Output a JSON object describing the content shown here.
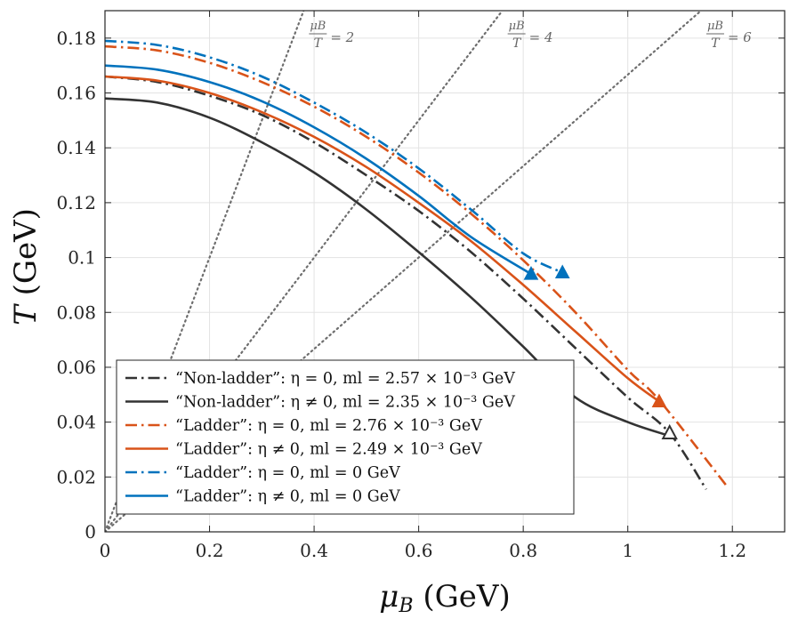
{
  "chart_data": {
    "type": "line",
    "title": "",
    "xlabel": "μB (GeV)",
    "ylabel": "T (GeV)",
    "xlim": [
      0,
      1.3
    ],
    "ylim": [
      0,
      0.19
    ],
    "xticks": [
      0,
      0.2,
      0.4,
      0.6,
      0.8,
      1.0,
      1.2
    ],
    "xtick_labels": [
      "0",
      "0.2",
      "0.4",
      "0.6",
      "0.8",
      "1",
      "1.2"
    ],
    "yticks": [
      0,
      0.02,
      0.04,
      0.06,
      0.08,
      0.1,
      0.12,
      0.14,
      0.16,
      0.18
    ],
    "ytick_labels": [
      "0",
      "0.02",
      "0.04",
      "0.06",
      "0.08",
      "0.1",
      "0.12",
      "0.14",
      "0.16",
      "0.18"
    ],
    "grid": true,
    "legend_position": "bottom-left",
    "reference_lines": [
      {
        "ratio": 2,
        "label_num": "μB",
        "label_den": "T",
        "label_rhs": "= 2"
      },
      {
        "ratio": 4,
        "label_num": "μB",
        "label_den": "T",
        "label_rhs": "= 4"
      },
      {
        "ratio": 6,
        "label_num": "μB",
        "label_den": "T",
        "label_rhs": "= 6"
      }
    ],
    "series": [
      {
        "name": "Non-ladder η=0",
        "legend_text": "“Non-ladder”: η = 0,  ml = 2.57 × 10⁻³ GeV",
        "color": "#333333",
        "dash": "dashdot",
        "x": [
          0,
          0.1,
          0.2,
          0.3,
          0.4,
          0.5,
          0.6,
          0.7,
          0.8,
          0.9,
          1.0,
          1.08,
          1.15
        ],
        "y": [
          0.166,
          0.164,
          0.159,
          0.152,
          0.142,
          0.13,
          0.117,
          0.102,
          0.085,
          0.067,
          0.049,
          0.036,
          0.0155
        ],
        "marker": {
          "x": 1.08,
          "y": 0.036,
          "shape": "open-triangle"
        }
      },
      {
        "name": "Non-ladder η≠0",
        "legend_text": "“Non-ladder”: η ≠ 0,  ml = 2.35 × 10⁻³ GeV",
        "color": "#333333",
        "dash": "solid",
        "x": [
          0,
          0.1,
          0.2,
          0.3,
          0.4,
          0.5,
          0.6,
          0.7,
          0.8,
          0.9,
          1.0,
          1.08
        ],
        "y": [
          0.158,
          0.1565,
          0.151,
          0.142,
          0.131,
          0.1175,
          0.102,
          0.0855,
          0.0675,
          0.049,
          0.04,
          0.035
        ],
        "marker": null
      },
      {
        "name": "Ladder η=0 ml≠0",
        "legend_text": "“Ladder”: η = 0,  ml = 2.76 × 10⁻³ GeV",
        "color": "#d95319",
        "dash": "dashdot",
        "x": [
          0,
          0.1,
          0.2,
          0.3,
          0.4,
          0.5,
          0.6,
          0.7,
          0.8,
          0.9,
          1.0,
          1.06,
          1.19
        ],
        "y": [
          0.177,
          0.1755,
          0.171,
          0.164,
          0.155,
          0.144,
          0.131,
          0.116,
          0.099,
          0.08,
          0.059,
          0.048,
          0.0165
        ],
        "marker": null
      },
      {
        "name": "Ladder η≠0 ml≠0",
        "legend_text": "“Ladder”: η ≠ 0,  ml = 2.49 × 10⁻³ GeV",
        "color": "#d95319",
        "dash": "solid",
        "x": [
          0,
          0.1,
          0.2,
          0.3,
          0.4,
          0.5,
          0.6,
          0.7,
          0.8,
          0.9,
          1.0,
          1.06
        ],
        "y": [
          0.166,
          0.1645,
          0.16,
          0.153,
          0.144,
          0.133,
          0.12,
          0.106,
          0.09,
          0.073,
          0.056,
          0.0475
        ],
        "marker": {
          "x": 1.06,
          "y": 0.0475,
          "shape": "filled-triangle"
        }
      },
      {
        "name": "Ladder η=0 ml=0",
        "legend_text": "“Ladder”: η = 0,  ml = 0 GeV",
        "color": "#0072bd",
        "dash": "dashdot",
        "x": [
          0,
          0.1,
          0.2,
          0.3,
          0.4,
          0.5,
          0.6,
          0.7,
          0.8,
          0.875
        ],
        "y": [
          0.179,
          0.1775,
          0.173,
          0.166,
          0.1565,
          0.1455,
          0.1325,
          0.1175,
          0.1015,
          0.0945
        ],
        "marker": {
          "x": 0.875,
          "y": 0.0945,
          "shape": "filled-triangle"
        }
      },
      {
        "name": "Ladder η≠0 ml=0",
        "legend_text": "“Ladder”: η ≠ 0,  ml = 0 GeV",
        "color": "#0072bd",
        "dash": "solid",
        "x": [
          0,
          0.1,
          0.2,
          0.3,
          0.4,
          0.5,
          0.6,
          0.7,
          0.815
        ],
        "y": [
          0.17,
          0.1685,
          0.164,
          0.157,
          0.1475,
          0.136,
          0.1225,
          0.1075,
          0.094
        ],
        "marker": {
          "x": 0.815,
          "y": 0.094,
          "shape": "filled-triangle"
        }
      }
    ]
  }
}
